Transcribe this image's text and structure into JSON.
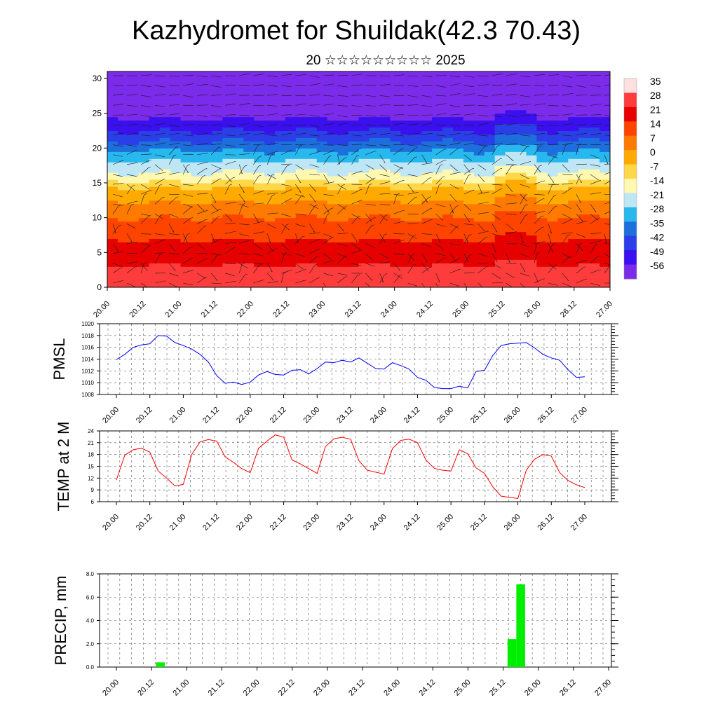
{
  "header": {
    "title": "Kazhydromet for Shuildak(42.3 70.43)",
    "subtitle": "20 ☆☆☆☆☆☆☆☆☆ 2025"
  },
  "time_labels": [
    "20.00",
    "20.12",
    "21.00",
    "21.12",
    "22.00",
    "22.12",
    "23.00",
    "23.12",
    "24.00",
    "24.12",
    "25.00",
    "25.12",
    "26.00",
    "26.12",
    "27.00"
  ],
  "chart_data": [
    {
      "type": "heatmap",
      "title": "",
      "x": [
        "20.00",
        "20.12",
        "21.00",
        "21.12",
        "22.00",
        "22.12",
        "23.00",
        "23.12",
        "24.00",
        "24.12",
        "25.00",
        "25.12",
        "26.00",
        "26.12",
        "27.00"
      ],
      "ylim": [
        0,
        31
      ],
      "yticks": [
        0,
        5,
        10,
        15,
        20,
        25,
        30
      ],
      "colorbar": {
        "labels": [
          "35",
          "28",
          "21",
          "14",
          "7",
          "0",
          "-7",
          "-14",
          "-21",
          "-28",
          "-35",
          "-42",
          "-49",
          "-56"
        ],
        "colors": [
          "#ffe0e0",
          "#ff3c3c",
          "#e60000",
          "#ff4400",
          "#ff7a00",
          "#ffaa00",
          "#ffd84a",
          "#fff8b0",
          "#bfe6f5",
          "#27b8ee",
          "#1d6fdc",
          "#2a3fe8",
          "#3a10ee",
          "#7b2bea"
        ]
      },
      "contour_rows": [
        {
          "alt": 0,
          "temp": 33
        },
        {
          "alt": 5,
          "temp": 25
        },
        {
          "alt": 10,
          "temp": 14
        },
        {
          "alt": 14,
          "temp": 2
        },
        {
          "alt": 16,
          "temp": -12
        },
        {
          "alt": 18,
          "temp": -20
        },
        {
          "alt": 20,
          "temp": -30
        },
        {
          "alt": 22,
          "temp": -40
        },
        {
          "alt": 25,
          "temp": -52
        },
        {
          "alt": 28,
          "temp": -60
        },
        {
          "alt": 31,
          "temp": -62
        }
      ],
      "overlay": "wind barbs"
    },
    {
      "type": "line",
      "ylabel": "PMSL",
      "ylim": [
        1008,
        1020
      ],
      "yticks": [
        1008,
        1010,
        1012,
        1014,
        1016,
        1018,
        1020
      ],
      "grid": true,
      "series": [
        {
          "color": "#0000ff",
          "values": [
            1013.9,
            1014.8,
            1016.0,
            1016.4,
            1016.6,
            1018.0,
            1017.9,
            1016.8,
            1016.3,
            1015.7,
            1014.8,
            1013.5,
            1011.2,
            1009.9,
            1010.1,
            1009.7,
            1010.1,
            1011.3,
            1011.9,
            1011.4,
            1011.3,
            1012.1,
            1012.2,
            1011.5,
            1012.4,
            1013.5,
            1013.4,
            1013.8,
            1013.5,
            1014.2,
            1013.3,
            1012.4,
            1012.3,
            1013.4,
            1012.9,
            1012.3,
            1010.9,
            1010.4,
            1009.2,
            1009.0,
            1009.0,
            1009.4,
            1009.1,
            1011.9,
            1012.1,
            1014.6,
            1016.3,
            1016.6,
            1016.7,
            1016.8,
            1015.9,
            1014.8,
            1014.2,
            1013.8,
            1012.2,
            1010.9,
            1011.0
          ]
        }
      ]
    },
    {
      "type": "line",
      "ylabel": "TEMP at 2 M",
      "ylim": [
        6,
        24
      ],
      "yticks": [
        6,
        9,
        12,
        15,
        18,
        21,
        24
      ],
      "grid": true,
      "series": [
        {
          "color": "#ff0000",
          "values": [
            11.5,
            17.8,
            19.2,
            19.6,
            18.6,
            13.8,
            12.0,
            10.0,
            10.4,
            18.0,
            21.2,
            21.8,
            21.4,
            17.4,
            16.0,
            14.4,
            13.4,
            19.6,
            21.4,
            23.0,
            22.4,
            16.6,
            15.6,
            14.4,
            13.2,
            20.0,
            22.0,
            22.4,
            21.9,
            16.4,
            14.0,
            13.5,
            13.0,
            19.5,
            21.6,
            21.9,
            21.0,
            16.6,
            14.5,
            14.0,
            13.8,
            19.2,
            18.2,
            14.6,
            13.2,
            9.8,
            7.4,
            7.1,
            6.8,
            14.0,
            16.8,
            18.0,
            17.6,
            13.4,
            11.4,
            10.3,
            9.6
          ]
        }
      ]
    },
    {
      "type": "bar",
      "ylabel": "PRECIP, mm",
      "ylim": [
        0,
        8
      ],
      "yticks": [
        "0.0",
        "2.0",
        "4.0",
        "6.0",
        "8.0"
      ],
      "grid": true,
      "series": [
        {
          "color": "#00ee00",
          "bars": [
            {
              "step": 5,
              "value": 0.4
            },
            {
              "step": 45,
              "value": 2.4
            },
            {
              "step": 46,
              "value": 7.1
            }
          ]
        }
      ]
    }
  ]
}
